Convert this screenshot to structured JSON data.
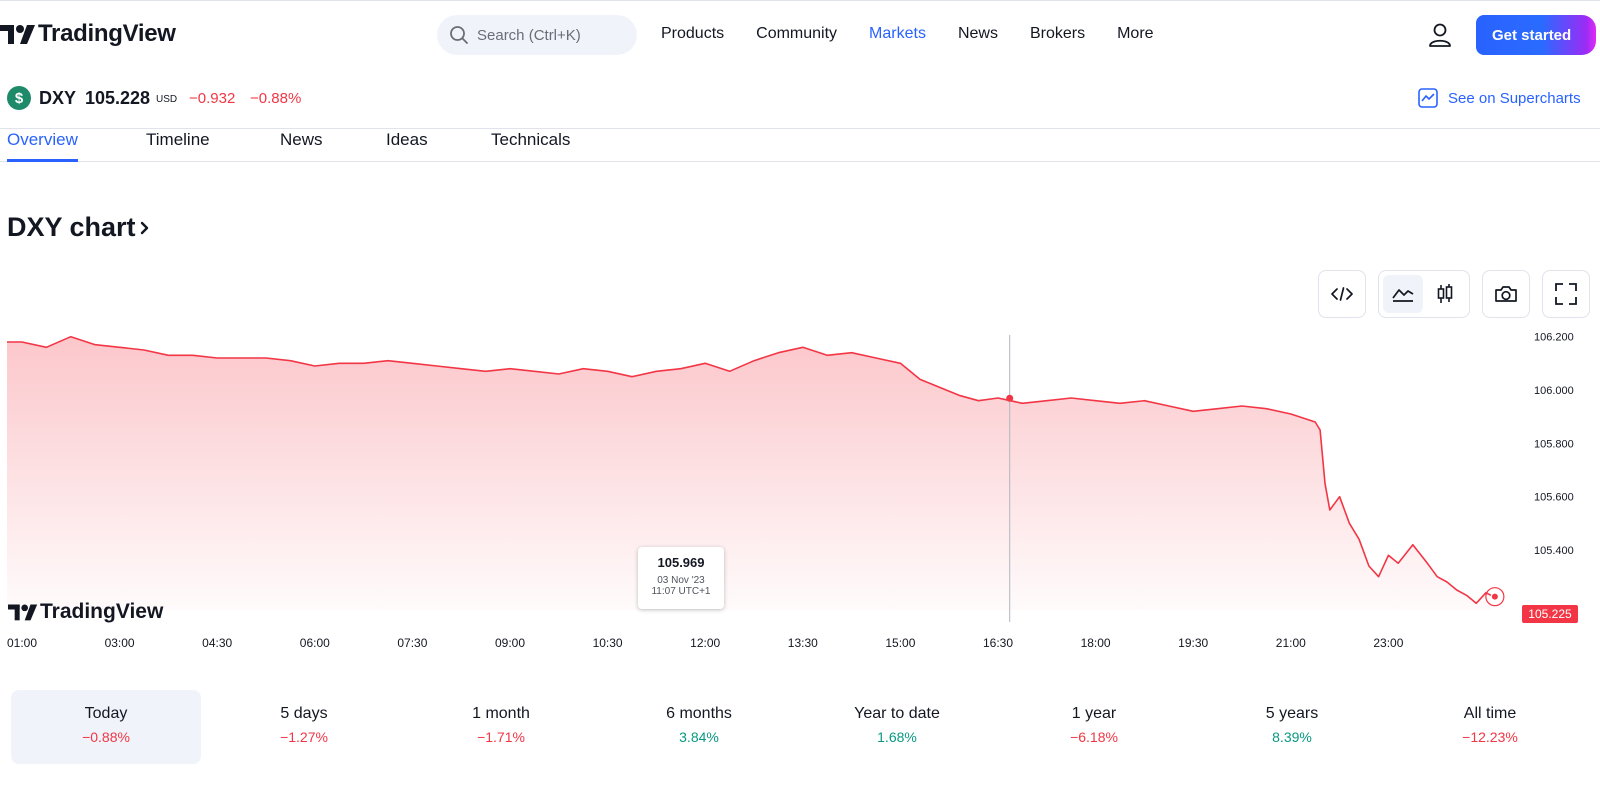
{
  "header": {
    "logo_text": "TradingView",
    "search_placeholder": "Search (Ctrl+K)",
    "nav": [
      "Products",
      "Community",
      "Markets",
      "News",
      "Brokers",
      "More"
    ],
    "active_nav": "Markets",
    "cta_label": "Get started"
  },
  "symbol": {
    "badge": "$",
    "ticker": "DXY",
    "price": "105.228",
    "currency": "USD",
    "change": "−0.932",
    "change_pct": "−0.88%",
    "supercharts_label": "See on Supercharts"
  },
  "tabs": [
    {
      "label": "Overview",
      "active": true
    },
    {
      "label": "Timeline",
      "active": false
    },
    {
      "label": "News",
      "active": false
    },
    {
      "label": "Ideas",
      "active": false
    },
    {
      "label": "Technicals",
      "active": false
    }
  ],
  "chart_title": "DXY chart",
  "toolbar": {
    "embed": "code-icon",
    "area": "area-chart-icon",
    "candles": "candlestick-icon",
    "snapshot": "camera-icon",
    "fullscreen": "fullscreen-icon"
  },
  "chart_data": {
    "type": "area",
    "x_ticks": [
      "01:00",
      "03:00",
      "04:30",
      "06:00",
      "07:30",
      "09:00",
      "10:30",
      "12:00",
      "13:30",
      "15:00",
      "16:30",
      "18:00",
      "19:30",
      "21:00",
      "23:00"
    ],
    "y_ticks": [
      "106.200",
      "106.000",
      "105.800",
      "105.600",
      "105.400"
    ],
    "ylim": [
      105.175,
      106.225
    ],
    "series": [
      {
        "values": [
          [
            0,
            106.18
          ],
          [
            0.25,
            106.16
          ],
          [
            0.5,
            106.2
          ],
          [
            0.75,
            106.17
          ],
          [
            1,
            106.16
          ],
          [
            1.25,
            106.15
          ],
          [
            1.5,
            106.13
          ],
          [
            1.75,
            106.13
          ],
          [
            2,
            106.12
          ],
          [
            2.5,
            106.12
          ],
          [
            2.75,
            106.11
          ],
          [
            3,
            106.09
          ],
          [
            3.25,
            106.1
          ],
          [
            3.5,
            106.1
          ],
          [
            3.75,
            106.11
          ],
          [
            4,
            106.1
          ],
          [
            4.25,
            106.09
          ],
          [
            4.5,
            106.08
          ],
          [
            4.75,
            106.07
          ],
          [
            5,
            106.08
          ],
          [
            5.25,
            106.07
          ],
          [
            5.5,
            106.06
          ],
          [
            5.75,
            106.08
          ],
          [
            6,
            106.07
          ],
          [
            6.25,
            106.05
          ],
          [
            6.5,
            106.07
          ],
          [
            6.75,
            106.08
          ],
          [
            7,
            106.1
          ],
          [
            7.25,
            106.07
          ],
          [
            7.5,
            106.11
          ],
          [
            7.75,
            106.14
          ],
          [
            8,
            106.16
          ],
          [
            8.25,
            106.13
          ],
          [
            8.5,
            106.14
          ],
          [
            8.75,
            106.12
          ],
          [
            9,
            106.1
          ],
          [
            9.2,
            106.04
          ],
          [
            9.4,
            106.01
          ],
          [
            9.6,
            105.98
          ],
          [
            9.8,
            105.96
          ],
          [
            10,
            105.97
          ],
          [
            10.25,
            105.95
          ],
          [
            10.5,
            105.96
          ],
          [
            10.75,
            105.97
          ],
          [
            11,
            105.96
          ],
          [
            11.25,
            105.95
          ],
          [
            11.5,
            105.96
          ],
          [
            11.75,
            105.94
          ],
          [
            12,
            105.92
          ],
          [
            12.25,
            105.93
          ],
          [
            12.5,
            105.94
          ],
          [
            12.75,
            105.93
          ],
          [
            13,
            105.91
          ],
          [
            13.25,
            105.88
          ],
          [
            13.3,
            105.85
          ],
          [
            13.35,
            105.65
          ],
          [
            13.4,
            105.55
          ],
          [
            13.5,
            105.6
          ],
          [
            13.6,
            105.5
          ],
          [
            13.7,
            105.44
          ],
          [
            13.8,
            105.34
          ],
          [
            13.9,
            105.3
          ],
          [
            14,
            105.38
          ],
          [
            14.1,
            105.35
          ],
          [
            14.25,
            105.42
          ],
          [
            14.4,
            105.35
          ],
          [
            14.5,
            105.3
          ],
          [
            14.6,
            105.28
          ],
          [
            14.7,
            105.25
          ],
          [
            14.8,
            105.23
          ],
          [
            14.9,
            105.2
          ],
          [
            15,
            105.24
          ],
          [
            15.05,
            105.23
          ]
        ]
      }
    ],
    "crosshair": {
      "price": "105.969",
      "date": "03 Nov '23",
      "time": "11:07 UTC+1",
      "x": 10.12,
      "y": 105.969
    },
    "last_price": "105.225",
    "last_value": 105.225,
    "color": "#f23645"
  },
  "periods": [
    {
      "label": "Today",
      "value": "−0.88%",
      "dir": "neg",
      "active": true
    },
    {
      "label": "5 days",
      "value": "−1.27%",
      "dir": "neg",
      "active": false
    },
    {
      "label": "1 month",
      "value": "−1.71%",
      "dir": "neg",
      "active": false
    },
    {
      "label": "6 months",
      "value": "3.84%",
      "dir": "pos",
      "active": false
    },
    {
      "label": "Year to date",
      "value": "1.68%",
      "dir": "pos",
      "active": false
    },
    {
      "label": "1 year",
      "value": "−6.18%",
      "dir": "neg",
      "active": false
    },
    {
      "label": "5 years",
      "value": "8.39%",
      "dir": "pos",
      "active": false
    },
    {
      "label": "All time",
      "value": "−12.23%",
      "dir": "neg",
      "active": false
    }
  ]
}
